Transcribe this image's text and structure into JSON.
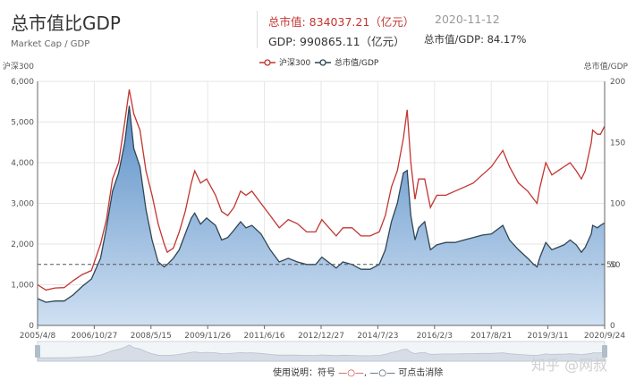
{
  "header": {
    "title": "总市值比GDP",
    "subtitle": "Market Cap / GDP",
    "market_cap_text": "总市值: 834037.21（亿元）",
    "date": "2020-11-12",
    "gdp_text": "GDP: 990865.11（亿元）",
    "ratio_text": "总市值/GDP: 84.17%"
  },
  "footer": {
    "hint_prefix": "使用说明：符号",
    "hint_suffix": "可点击消除"
  },
  "watermark": "知乎 @网叔",
  "colors": {
    "hs300": "#c23531",
    "ratio_line": "#2f4554",
    "area_top": "#6d9ccc",
    "area_bottom": "#c9dcef"
  },
  "chart_data": {
    "type": "line",
    "title": "总市值比GDP",
    "legend": [
      "沪深300",
      "总市值/GDP"
    ],
    "legend_position": "top-center",
    "y_left": {
      "label": "沪深300",
      "ticks": [
        "0",
        "1,000",
        "2,000",
        "3,000",
        "4,000",
        "5,000",
        "6,000"
      ],
      "range": [
        0,
        6000
      ]
    },
    "y_right": {
      "label": "总市值/GDP",
      "ticks": [
        "0",
        "50",
        "100",
        "150",
        "200"
      ],
      "range": [
        0,
        200
      ]
    },
    "x_tick_labels": [
      "2005/4/8",
      "2006/10/27",
      "2008/5/15",
      "2009/11/26",
      "2011/6/16",
      "2012/12/27",
      "2014/7/23",
      "2016/2/3",
      "2017/8/21",
      "2019/3/11",
      "2020/9/24"
    ],
    "reference_line": {
      "axis": "y_right",
      "value": 50,
      "label": "50"
    },
    "grid": true,
    "series": [
      {
        "name": "沪深300",
        "axis": "left",
        "x": [
          "2005/4/8",
          "2005/7/1",
          "2005/10/1",
          "2006/1/1",
          "2006/4/1",
          "2006/7/1",
          "2006/10/1",
          "2007/1/1",
          "2007/3/1",
          "2007/5/1",
          "2007/7/1",
          "2007/9/1",
          "2007/10/16",
          "2007/12/1",
          "2008/2/1",
          "2008/4/1",
          "2008/6/1",
          "2008/8/1",
          "2008/10/1",
          "2008/11/1",
          "2009/1/1",
          "2009/3/1",
          "2009/5/1",
          "2009/7/1",
          "2009/8/4",
          "2009/10/1",
          "2009/12/1",
          "2010/3/1",
          "2010/5/1",
          "2010/7/1",
          "2010/9/1",
          "2010/11/8",
          "2011/1/1",
          "2011/3/1",
          "2011/6/1",
          "2011/9/1",
          "2011/12/1",
          "2012/3/1",
          "2012/6/1",
          "2012/9/1",
          "2012/12/1",
          "2013/2/1",
          "2013/6/25",
          "2013/9/1",
          "2013/12/1",
          "2014/3/1",
          "2014/6/1",
          "2014/9/1",
          "2014/11/1",
          "2015/1/1",
          "2015/3/1",
          "2015/5/1",
          "2015/6/8",
          "2015/7/15",
          "2015/8/26",
          "2015/10/1",
          "2015/12/1",
          "2016/1/28",
          "2016/4/1",
          "2016/7/1",
          "2016/10/1",
          "2017/1/1",
          "2017/4/1",
          "2017/7/1",
          "2017/10/1",
          "2018/1/24",
          "2018/4/1",
          "2018/7/1",
          "2018/10/1",
          "2018/12/1",
          "2019/1/3",
          "2019/2/1",
          "2019/4/1",
          "2019/6/1",
          "2019/8/1",
          "2019/10/1",
          "2019/12/1",
          "2020/2/1",
          "2020/3/23",
          "2020/5/1",
          "2020/7/1",
          "2020/7/15",
          "2020/9/1",
          "2020/10/1",
          "2020/11/12"
        ],
        "values": [
          1000,
          870,
          920,
          930,
          1100,
          1250,
          1350,
          2000,
          2600,
          3600,
          4000,
          5000,
          5800,
          5200,
          4800,
          3800,
          3200,
          2500,
          2000,
          1800,
          1900,
          2300,
          2800,
          3500,
          3800,
          3500,
          3600,
          3200,
          2800,
          2700,
          2900,
          3300,
          3200,
          3300,
          3000,
          2700,
          2400,
          2600,
          2500,
          2300,
          2300,
          2600,
          2200,
          2400,
          2400,
          2200,
          2200,
          2300,
          2700,
          3400,
          3800,
          4600,
          5300,
          4000,
          3100,
          3600,
          3600,
          2900,
          3200,
          3200,
          3300,
          3400,
          3500,
          3700,
          3900,
          4300,
          3900,
          3500,
          3300,
          3100,
          3000,
          3400,
          4000,
          3700,
          3800,
          3900,
          4000,
          3800,
          3600,
          3800,
          4500,
          4800,
          4700,
          4700,
          4900
        ]
      },
      {
        "name": "总市值/GDP",
        "axis": "right",
        "x": [
          "2005/4/8",
          "2005/7/1",
          "2005/10/1",
          "2006/1/1",
          "2006/4/1",
          "2006/7/1",
          "2006/10/1",
          "2007/1/1",
          "2007/3/1",
          "2007/5/1",
          "2007/7/1",
          "2007/9/1",
          "2007/10/16",
          "2007/12/1",
          "2008/2/1",
          "2008/4/1",
          "2008/6/1",
          "2008/8/1",
          "2008/10/1",
          "2008/11/1",
          "2009/1/1",
          "2009/3/1",
          "2009/5/1",
          "2009/7/1",
          "2009/8/4",
          "2009/10/1",
          "2009/12/1",
          "2010/3/1",
          "2010/5/1",
          "2010/7/1",
          "2010/9/1",
          "2010/11/8",
          "2011/1/1",
          "2011/3/1",
          "2011/6/1",
          "2011/9/1",
          "2011/12/1",
          "2012/3/1",
          "2012/6/1",
          "2012/9/1",
          "2012/12/1",
          "2013/2/1",
          "2013/6/25",
          "2013/9/1",
          "2013/12/1",
          "2014/3/1",
          "2014/6/1",
          "2014/9/1",
          "2014/11/1",
          "2015/1/1",
          "2015/3/1",
          "2015/5/1",
          "2015/6/8",
          "2015/7/15",
          "2015/8/26",
          "2015/10/1",
          "2015/12/1",
          "2016/1/28",
          "2016/4/1",
          "2016/7/1",
          "2016/10/1",
          "2017/1/1",
          "2017/4/1",
          "2017/7/1",
          "2017/10/1",
          "2018/1/24",
          "2018/4/1",
          "2018/7/1",
          "2018/10/1",
          "2018/12/1",
          "2019/1/3",
          "2019/2/1",
          "2019/4/1",
          "2019/6/1",
          "2019/8/1",
          "2019/10/1",
          "2019/12/1",
          "2020/2/1",
          "2020/3/23",
          "2020/5/1",
          "2020/7/1",
          "2020/7/15",
          "2020/9/1",
          "2020/10/1",
          "2020/11/12"
        ],
        "values": [
          22,
          19,
          20,
          20,
          25,
          32,
          38,
          55,
          80,
          110,
          125,
          150,
          180,
          145,
          130,
          95,
          70,
          52,
          48,
          50,
          55,
          62,
          75,
          88,
          92,
          83,
          88,
          82,
          70,
          72,
          78,
          85,
          80,
          82,
          75,
          62,
          52,
          55,
          52,
          50,
          50,
          56,
          47,
          52,
          50,
          46,
          46,
          50,
          62,
          85,
          100,
          125,
          127,
          90,
          70,
          80,
          85,
          62,
          66,
          68,
          68,
          70,
          72,
          74,
          75,
          82,
          70,
          62,
          55,
          50,
          48,
          56,
          68,
          62,
          64,
          66,
          70,
          66,
          60,
          64,
          75,
          82,
          80,
          82,
          84
        ]
      }
    ]
  }
}
